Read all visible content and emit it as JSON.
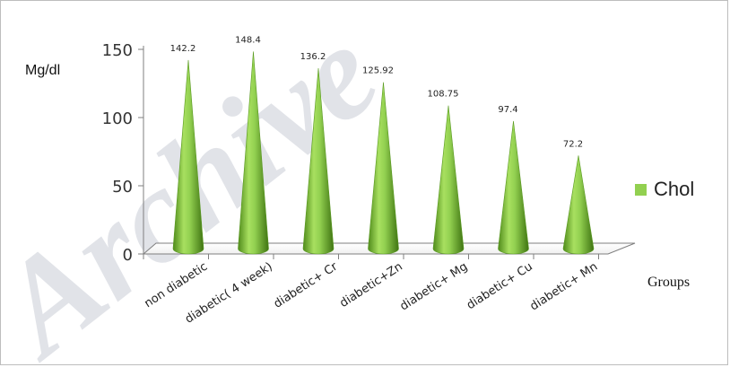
{
  "chart_data": {
    "type": "bar",
    "bar_shape": "cone",
    "categories": [
      "non diabetic",
      "diabetic( 4 week)",
      "diabetic+ Cr",
      "diabetic+Zn",
      "diabetic+ Mg",
      "diabetic+ Cu",
      "diabetic+ Mn"
    ],
    "series": [
      {
        "name": "Chol",
        "values": [
          142.2,
          148.4,
          136.2,
          125.92,
          108.75,
          97.4,
          72.2
        ],
        "color": "#92d050"
      }
    ],
    "data_labels": [
      "142.2",
      "148.4",
      "136.2",
      "125.92",
      "108.75",
      "97.4",
      "72.2"
    ],
    "ylabel": "Mg/dl",
    "xlabel": "Groups",
    "ylim": [
      0,
      150
    ],
    "yticks": [
      "0",
      "50",
      "100",
      "150"
    ],
    "legend": {
      "position": "right",
      "entries": [
        "Chol"
      ]
    },
    "grid": false
  },
  "watermark": {
    "text": "Archive",
    "color": "#c8ccd6"
  }
}
